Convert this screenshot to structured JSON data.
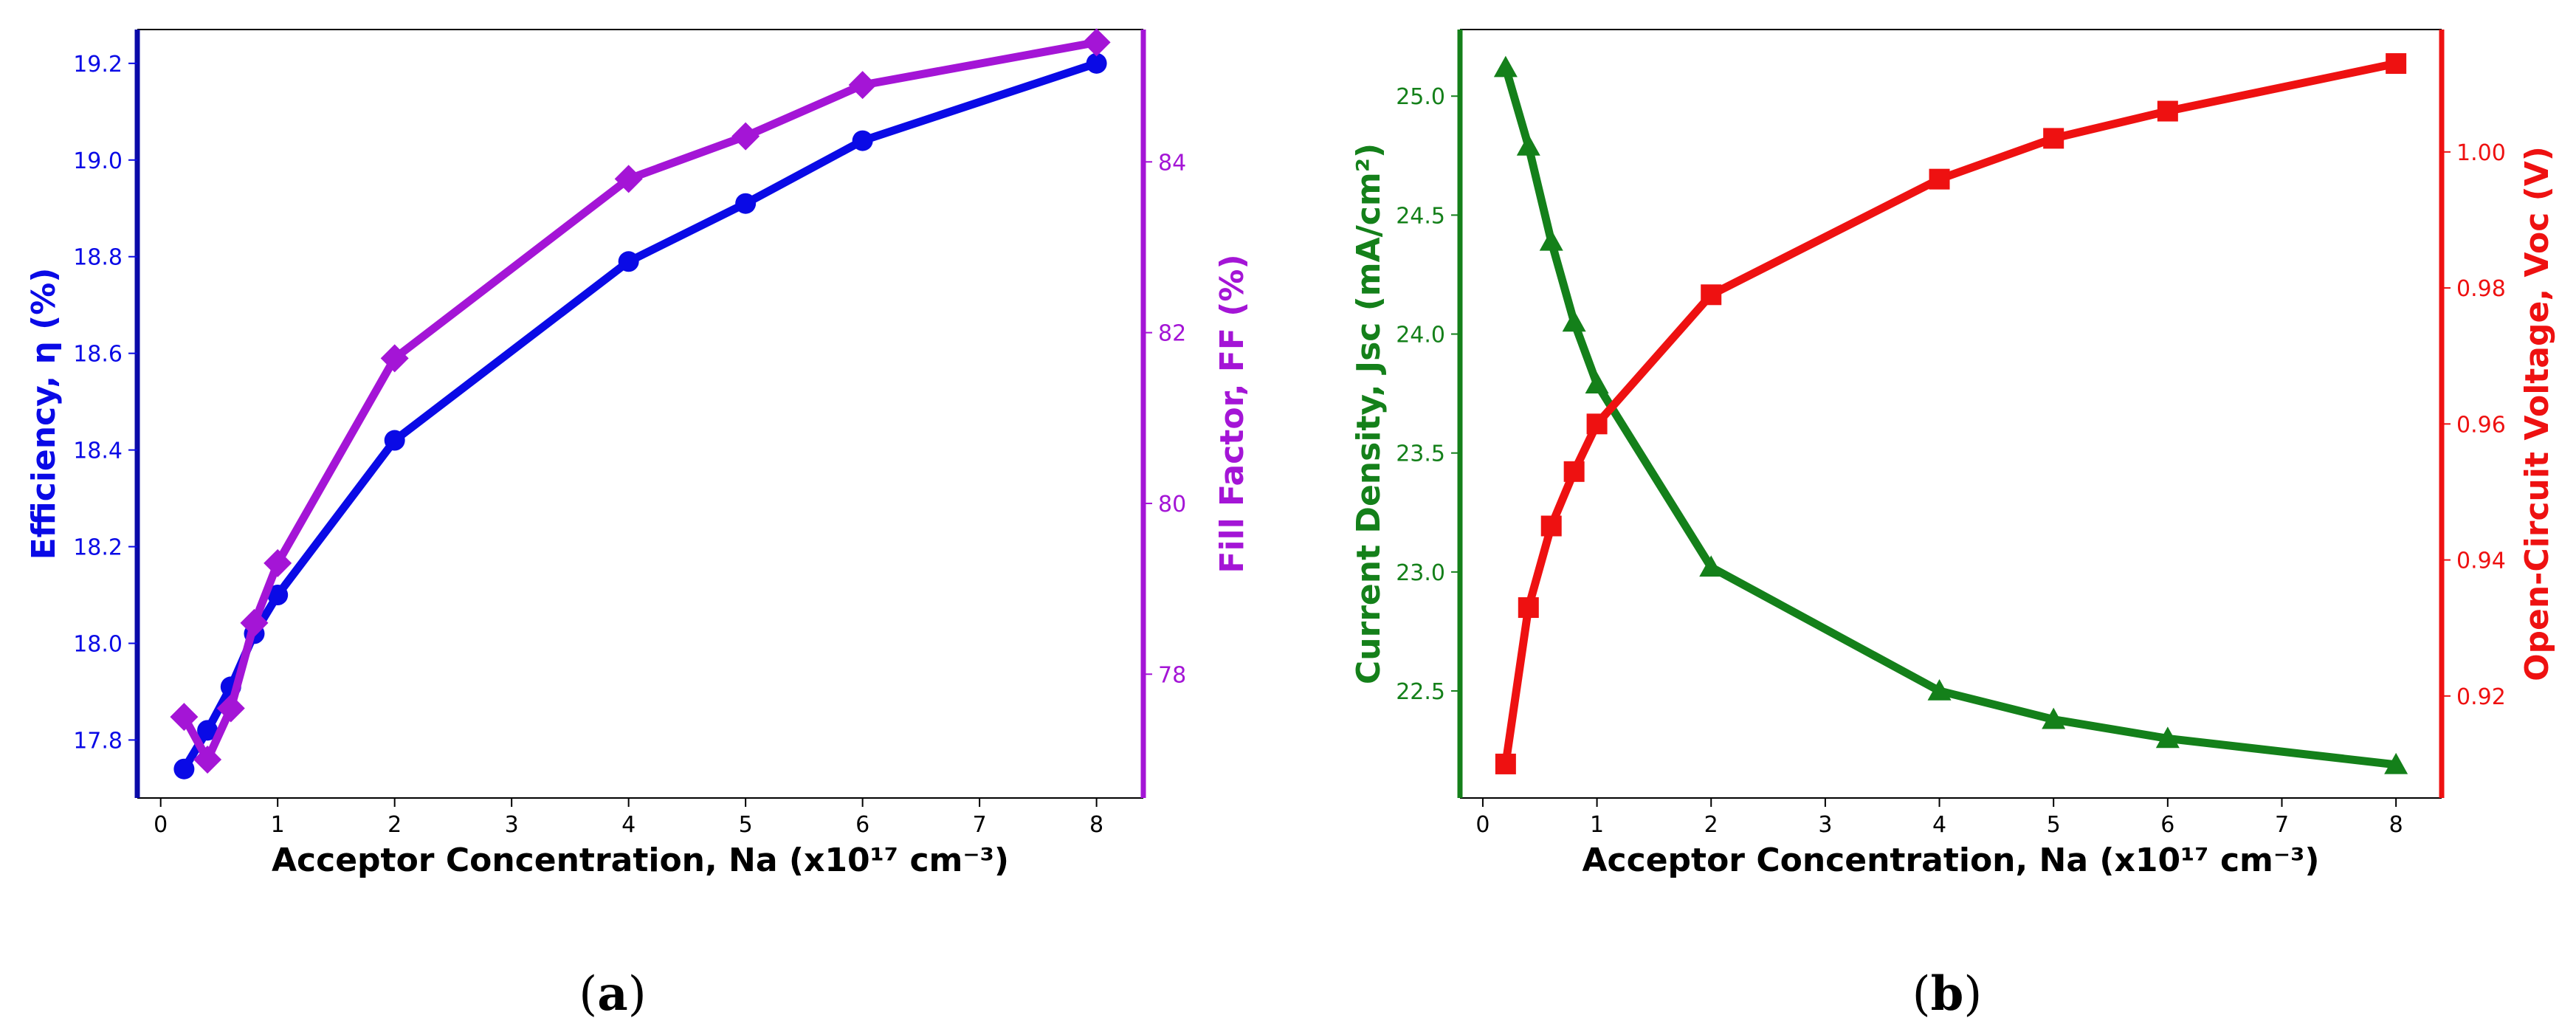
{
  "panels": {
    "a": {
      "label": "(a)",
      "letter": "a"
    },
    "b": {
      "label": "(b)",
      "letter": "b"
    }
  },
  "colors": {
    "efficiency": "#0a0ae6",
    "fill_factor": "#a415d6",
    "jsc": "#14801a",
    "voc": "#ee1111",
    "efficiency_spine": "#0a0aa8"
  },
  "chart_data": [
    {
      "id": "a",
      "type": "line",
      "xlabel": "Acceptor Concentration, Na (x10¹⁷ cm⁻³)",
      "xlim": [
        -0.2,
        8.4
      ],
      "xticks": [
        0,
        1,
        2,
        3,
        4,
        5,
        6,
        7,
        8
      ],
      "y_left": {
        "label": "Efficiency, η (%)",
        "lim": [
          17.68,
          19.27
        ],
        "ticks": [
          17.8,
          18.0,
          18.2,
          18.4,
          18.6,
          18.8,
          19.0,
          19.2
        ],
        "tick_labels": [
          "17.8",
          "18.0",
          "18.2",
          "18.4",
          "18.6",
          "18.8",
          "19.0",
          "19.2"
        ]
      },
      "y_right": {
        "label": "Fill Factor, FF (%)",
        "lim": [
          76.55,
          85.55
        ],
        "ticks": [
          78,
          80,
          82,
          84
        ],
        "tick_labels": [
          "78",
          "80",
          "82",
          "84"
        ]
      },
      "series": [
        {
          "name": "Efficiency",
          "axis": "left",
          "marker": "circle",
          "x": [
            0.2,
            0.4,
            0.6,
            0.8,
            1,
            2,
            4,
            5,
            6,
            8
          ],
          "values": [
            17.74,
            17.82,
            17.91,
            18.02,
            18.1,
            18.42,
            18.79,
            18.91,
            19.04,
            19.2
          ]
        },
        {
          "name": "Fill Factor",
          "axis": "right",
          "marker": "diamond",
          "x": [
            0.2,
            0.4,
            0.6,
            0.8,
            1,
            2,
            4,
            5,
            6,
            8
          ],
          "values": [
            77.5,
            77.0,
            77.6,
            78.6,
            79.3,
            81.7,
            83.8,
            84.3,
            84.9,
            85.4
          ]
        }
      ]
    },
    {
      "id": "b",
      "type": "line",
      "xlabel": "Acceptor Concentration, Na (x10¹⁷ cm⁻³)",
      "xlim": [
        -0.2,
        8.4
      ],
      "xticks": [
        0,
        1,
        2,
        3,
        4,
        5,
        6,
        7,
        8
      ],
      "y_left": {
        "label": "Current Density, Jsc (mA/cm²)",
        "lim": [
          22.05,
          25.28
        ],
        "ticks": [
          22.5,
          23.0,
          23.5,
          24.0,
          24.5,
          25.0
        ],
        "tick_labels": [
          "22.5",
          "23.0",
          "23.5",
          "24.0",
          "24.5",
          "25.0"
        ]
      },
      "y_right": {
        "label": "Open-Circuit Voltage, Voc (V)",
        "lim": [
          0.905,
          1.018
        ],
        "ticks": [
          0.92,
          0.94,
          0.96,
          0.98,
          1.0
        ],
        "tick_labels": [
          "0.92",
          "0.94",
          "0.96",
          "0.98",
          "1.00"
        ]
      },
      "series": [
        {
          "name": "Jsc",
          "axis": "left",
          "marker": "triangle",
          "x": [
            0.2,
            0.4,
            0.6,
            0.8,
            1,
            2,
            4,
            5,
            6,
            8
          ],
          "values": [
            25.12,
            24.79,
            24.39,
            24.05,
            23.79,
            23.02,
            22.5,
            22.38,
            22.3,
            22.19
          ]
        },
        {
          "name": "Voc",
          "axis": "right",
          "marker": "square",
          "x": [
            0.2,
            0.4,
            0.6,
            0.8,
            1,
            2,
            4,
            5,
            6,
            8
          ],
          "values": [
            0.91,
            0.933,
            0.945,
            0.953,
            0.96,
            0.979,
            0.996,
            1.002,
            1.006,
            1.013
          ]
        }
      ]
    }
  ]
}
